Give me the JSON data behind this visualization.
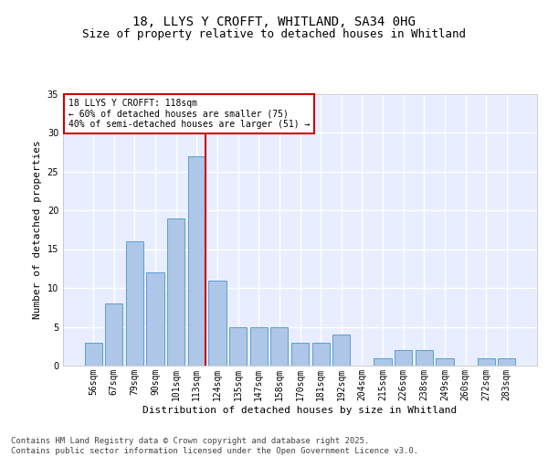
{
  "title_line1": "18, LLYS Y CROFFT, WHITLAND, SA34 0HG",
  "title_line2": "Size of property relative to detached houses in Whitland",
  "xlabel": "Distribution of detached houses by size in Whitland",
  "ylabel": "Number of detached properties",
  "categories": [
    "56sqm",
    "67sqm",
    "79sqm",
    "90sqm",
    "101sqm",
    "113sqm",
    "124sqm",
    "135sqm",
    "147sqm",
    "158sqm",
    "170sqm",
    "181sqm",
    "192sqm",
    "204sqm",
    "215sqm",
    "226sqm",
    "238sqm",
    "249sqm",
    "260sqm",
    "272sqm",
    "283sqm"
  ],
  "values": [
    3,
    8,
    16,
    12,
    19,
    27,
    11,
    5,
    5,
    5,
    3,
    3,
    4,
    0,
    1,
    2,
    2,
    1,
    0,
    1,
    1
  ],
  "bar_color": "#aec6e8",
  "bar_edge_color": "#5a9fd4",
  "highlight_index": 5,
  "highlight_line_color": "#cc0000",
  "ylim": [
    0,
    35
  ],
  "yticks": [
    0,
    5,
    10,
    15,
    20,
    25,
    30,
    35
  ],
  "background_color": "#e8eeff",
  "grid_color": "#ffffff",
  "annotation_box_text": "18 LLYS Y CROFFT: 118sqm\n← 60% of detached houses are smaller (75)\n40% of semi-detached houses are larger (51) →",
  "annotation_box_color": "#cc0000",
  "footer_text": "Contains HM Land Registry data © Crown copyright and database right 2025.\nContains public sector information licensed under the Open Government Licence v3.0.",
  "title_fontsize": 10,
  "subtitle_fontsize": 9,
  "axis_label_fontsize": 8,
  "tick_fontsize": 7,
  "annotation_fontsize": 7,
  "footer_fontsize": 6.5
}
